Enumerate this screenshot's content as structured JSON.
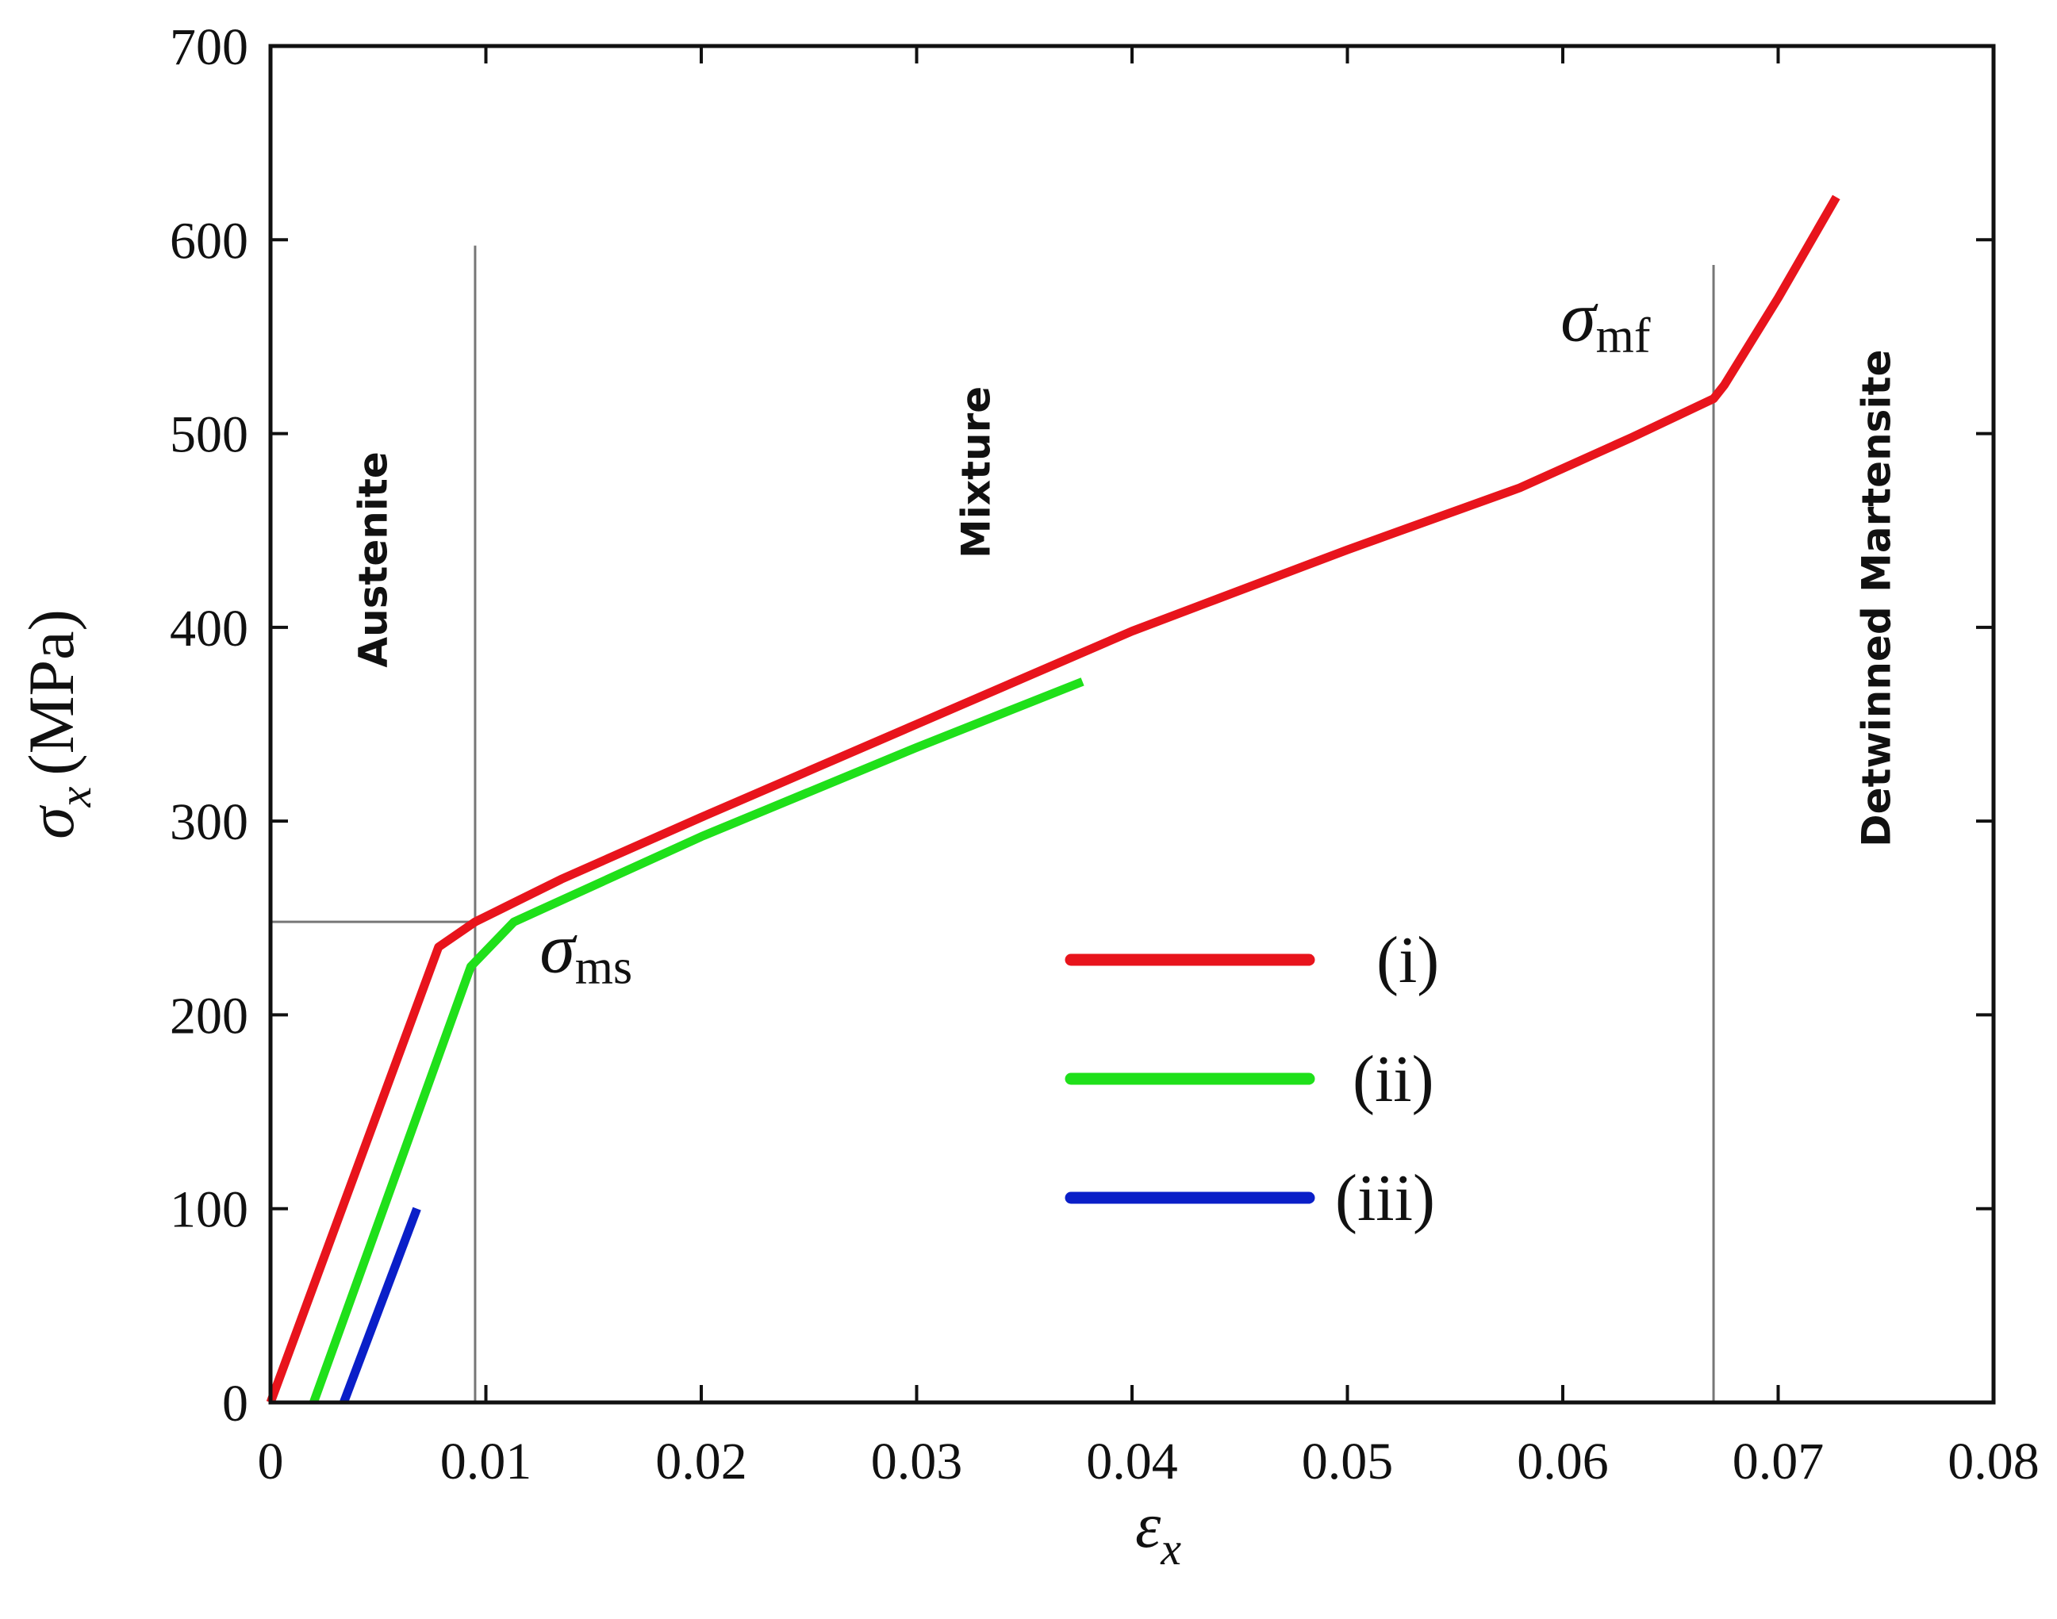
{
  "chart_data": {
    "type": "line",
    "xlabel": "ε",
    "xlabel_sub": "x",
    "ylabel_sym": "σ",
    "ylabel_sub": "x",
    "ylabel_unit": "(MPa)",
    "xlim": [
      0,
      0.08
    ],
    "ylim": [
      0,
      700
    ],
    "xticks": [
      0,
      0.01,
      0.02,
      0.03,
      0.04,
      0.05,
      0.06,
      0.07,
      0.08
    ],
    "xtick_labels": [
      "0",
      "0.01",
      "0.02",
      "0.03",
      "0.04",
      "0.05",
      "0.06",
      "0.07",
      "0.08"
    ],
    "yticks": [
      0,
      100,
      200,
      300,
      400,
      500,
      600,
      700
    ],
    "ytick_labels": [
      "0",
      "100",
      "200",
      "300",
      "400",
      "500",
      "600",
      "700"
    ],
    "series": [
      {
        "name": "(i)",
        "color": "#e8141c",
        "x": [
          0,
          0.0078,
          0.0095,
          0.0135,
          0.02,
          0.03,
          0.04,
          0.05,
          0.058,
          0.0632,
          0.067,
          0.0675,
          0.07,
          0.0727
        ],
        "y": [
          0,
          235,
          248,
          270,
          302,
          350,
          398,
          440,
          472,
          498,
          518,
          525,
          570,
          622
        ]
      },
      {
        "name": "(ii)",
        "color": "#1fe01a",
        "x": [
          0.002,
          0.0093,
          0.0113,
          0.02,
          0.03,
          0.0377
        ],
        "y": [
          0,
          225,
          248,
          292,
          338,
          372
        ]
      },
      {
        "name": "(iii)",
        "color": "#0a1fc8",
        "x": [
          0.0034,
          0.0068
        ],
        "y": [
          0,
          100
        ]
      }
    ],
    "vertical_lines": [
      {
        "x": 0.0095,
        "y_top": 597
      },
      {
        "x": 0.067,
        "y_top": 587
      }
    ],
    "horizontal_lines": [
      {
        "y": 248,
        "x_end": 0.0095
      }
    ],
    "regions": [
      {
        "label": "Austenite",
        "x": 0.0049,
        "y": 435
      },
      {
        "label": "Mixture",
        "x": 0.0329,
        "y": 480
      },
      {
        "label": "Detwinned Martensite",
        "x": 0.0747,
        "y": 415
      }
    ],
    "annotations": [
      {
        "symbol": "σ",
        "sub": "ms",
        "x": 0.0125,
        "y": 222
      },
      {
        "symbol": "σ",
        "sub": "mf",
        "x": 0.0599,
        "y": 548
      }
    ],
    "legend": {
      "position": "center-right",
      "entries": [
        "(i)",
        "(ii)",
        "(iii)"
      ]
    }
  }
}
